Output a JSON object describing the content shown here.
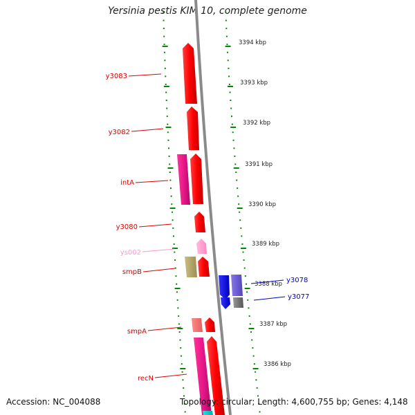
{
  "title": "Yersinia pestis KIM 10, complete genome",
  "footer": {
    "accession": "Accession: NC_004088",
    "summary": "Topology: circular; Length: 4,600,755 bp; Genes: 4,148"
  },
  "colors": {
    "forward_gene": "#ff0000",
    "alt_gene": "#e8178a",
    "rna_gene": "#ff99cc",
    "olive_gene": "#b5a86a",
    "reverse_gene": "#0000ee",
    "reverse_label": "#0000cc",
    "tick": "#008800",
    "backbone": "#888888"
  },
  "kbp_labels": [
    "3394 kbp",
    "3393 kbp",
    "3392 kbp",
    "3391 kbp",
    "3390 kbp",
    "3389 kbp",
    "3388 kbp",
    "3387 kbp",
    "3386 kbp"
  ],
  "gene_labels": [
    {
      "text": "y3083",
      "strand": "forward"
    },
    {
      "text": "y3082",
      "strand": "forward"
    },
    {
      "text": "intA",
      "strand": "forward"
    },
    {
      "text": "y3080",
      "strand": "forward"
    },
    {
      "text": "ys002",
      "strand": "rna"
    },
    {
      "text": "smpB",
      "strand": "forward"
    },
    {
      "text": "smpA",
      "strand": "forward"
    },
    {
      "text": "recN",
      "strand": "forward"
    },
    {
      "text": "y3078",
      "strand": "reverse"
    },
    {
      "text": "y3077",
      "strand": "reverse"
    }
  ]
}
